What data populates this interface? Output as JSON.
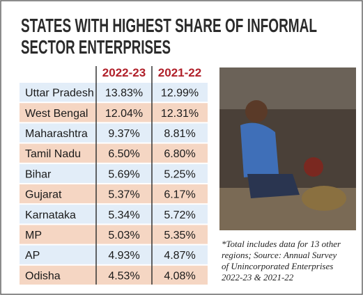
{
  "title": [
    "STATES WITH HIGHEST SHARE OF INFORMAL",
    "SECTOR ENTERPRISES"
  ],
  "table": {
    "header": [
      "2022-23",
      "2021-22"
    ],
    "rows": [
      [
        "Uttar Pradesh",
        "13.83%",
        "12.99%"
      ],
      [
        "West Bengal",
        "12.04%",
        "12.31%"
      ],
      [
        "Maharashtra",
        "9.37%",
        "8.81%"
      ],
      [
        "Tamil Nadu",
        "6.50%",
        "6.80%"
      ],
      [
        "Bihar",
        "5.69%",
        "5.25%"
      ],
      [
        "Gujarat",
        "5.37%",
        "6.17%"
      ],
      [
        "Karnataka",
        "5.34%",
        "5.72%"
      ],
      [
        "MP",
        "5.03%",
        "5.35%"
      ],
      [
        "AP",
        "4.93%",
        "4.87%"
      ],
      [
        "Odisha",
        "4.53%",
        "4.08%"
      ]
    ]
  },
  "footnote": [
    "*Total includes data for 13 other",
    "regions; Source: Annual Survey",
    "of Unincorporated Enterprises",
    "2022-23 & 2021-22"
  ]
}
